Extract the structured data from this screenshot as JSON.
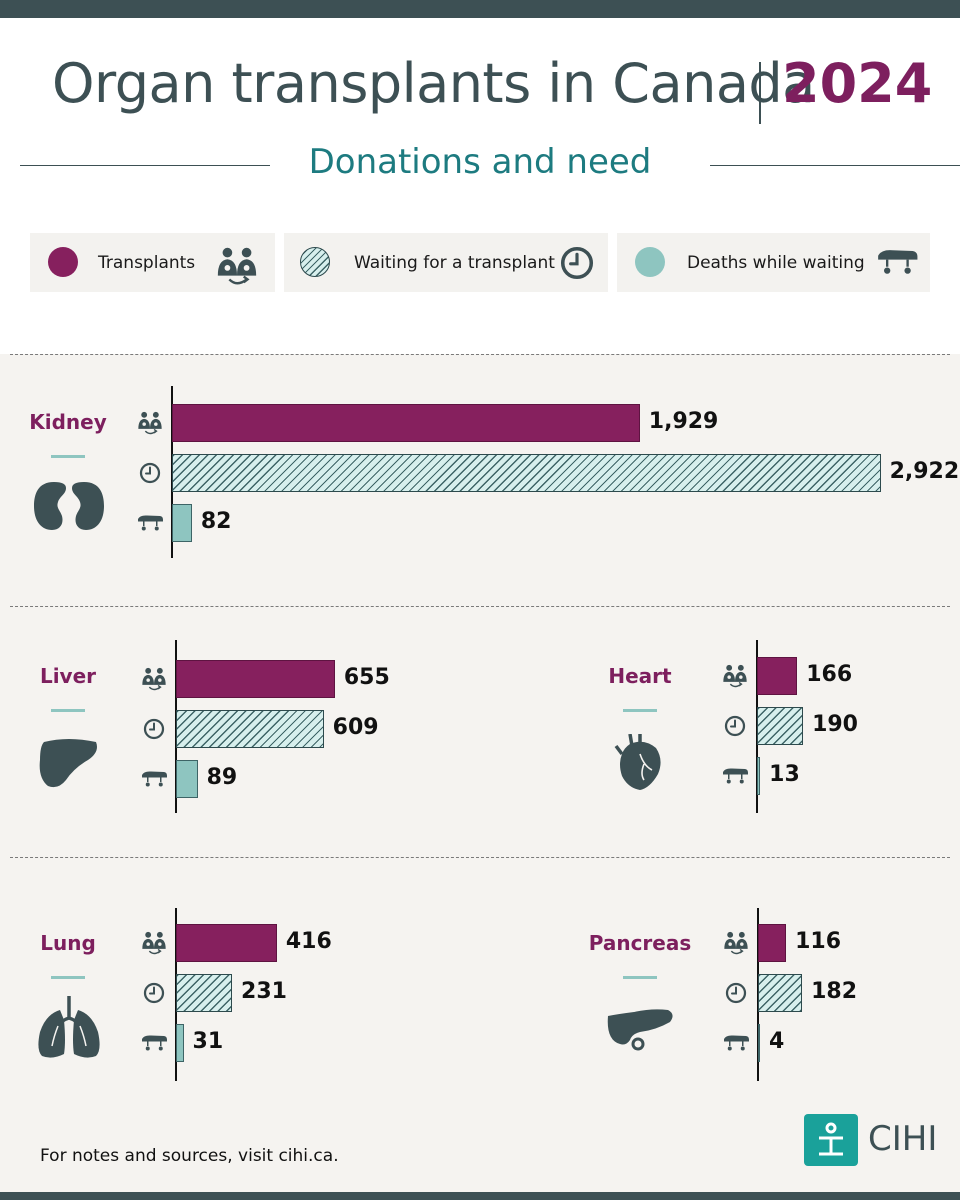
{
  "header": {
    "title": "Organ transplants in Canada",
    "year": "2024",
    "subtitle": "Donations and need"
  },
  "legend": {
    "transplants": "Transplants",
    "waiting": "Waiting for a transplant",
    "deaths": "Deaths while waiting"
  },
  "colors": {
    "transplants": "#86205e",
    "waiting_stripe": "#3d6466",
    "waiting_fill": "#d7efed",
    "deaths": "#8ec5c0",
    "dark": "#3d5054",
    "accent": "#1d7b80"
  },
  "chart_data": [
    {
      "type": "bar",
      "organ": "Kidney",
      "categories": [
        "Transplants",
        "Waiting for a transplant",
        "Deaths while waiting"
      ],
      "values": [
        1929,
        2922,
        82
      ],
      "labels": [
        "1,929",
        "2,922",
        "82"
      ]
    },
    {
      "type": "bar",
      "organ": "Liver",
      "categories": [
        "Transplants",
        "Waiting for a transplant",
        "Deaths while waiting"
      ],
      "values": [
        655,
        609,
        89
      ],
      "labels": [
        "655",
        "609",
        "89"
      ]
    },
    {
      "type": "bar",
      "organ": "Heart",
      "categories": [
        "Transplants",
        "Waiting for a transplant",
        "Deaths while waiting"
      ],
      "values": [
        166,
        190,
        13
      ],
      "labels": [
        "166",
        "190",
        "13"
      ]
    },
    {
      "type": "bar",
      "organ": "Lung",
      "categories": [
        "Transplants",
        "Waiting for a transplant",
        "Deaths while waiting"
      ],
      "values": [
        416,
        231,
        31
      ],
      "labels": [
        "416",
        "231",
        "31"
      ]
    },
    {
      "type": "bar",
      "organ": "Pancreas",
      "categories": [
        "Transplants",
        "Waiting for a transplant",
        "Deaths while waiting"
      ],
      "values": [
        116,
        182,
        4
      ],
      "labels": [
        "116",
        "182",
        "4"
      ]
    }
  ],
  "footer": {
    "note": "For notes and sources, visit cihi.ca.",
    "logo_text": "CIHI"
  }
}
